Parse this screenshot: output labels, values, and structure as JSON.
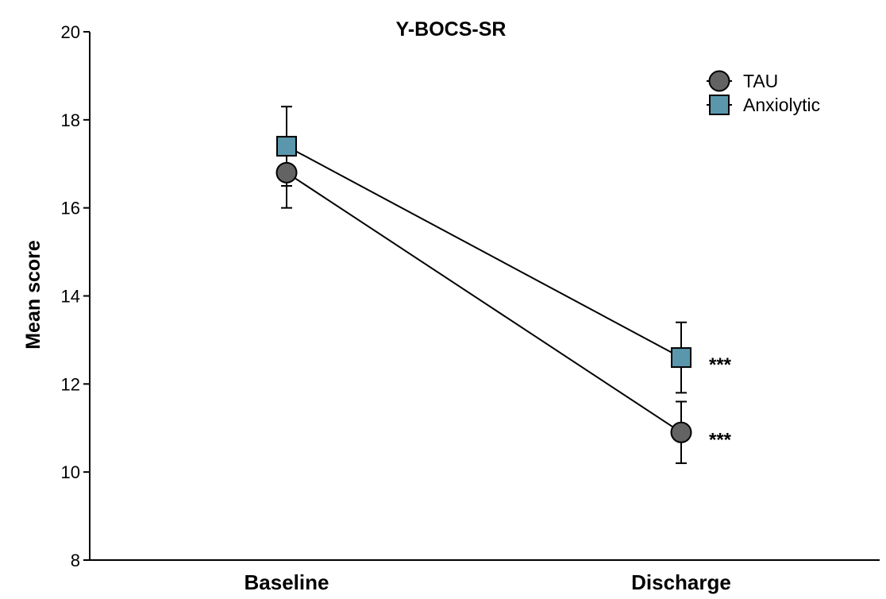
{
  "chart_data": {
    "type": "line",
    "title": "Y-BOCS-SR",
    "xlabel": "",
    "ylabel": "Mean score",
    "categories": [
      "Baseline",
      "Discharge"
    ],
    "ylim": [
      8,
      20
    ],
    "yticks": [
      8,
      10,
      12,
      14,
      16,
      18,
      20
    ],
    "grid": false,
    "legend_position": "top-right",
    "series": [
      {
        "name": "TAU",
        "marker": "circle",
        "color": "#636363",
        "values": [
          16.8,
          10.9
        ],
        "error_low": [
          16.0,
          10.2
        ],
        "error_high": [
          17.6,
          11.6
        ],
        "annotations": [
          "",
          "***"
        ]
      },
      {
        "name": "Anxiolytic",
        "marker": "square",
        "color": "#5a97ad",
        "values": [
          17.4,
          12.6
        ],
        "error_low": [
          16.5,
          11.8
        ],
        "error_high": [
          18.3,
          13.4
        ],
        "annotations": [
          "",
          "***"
        ]
      }
    ]
  }
}
